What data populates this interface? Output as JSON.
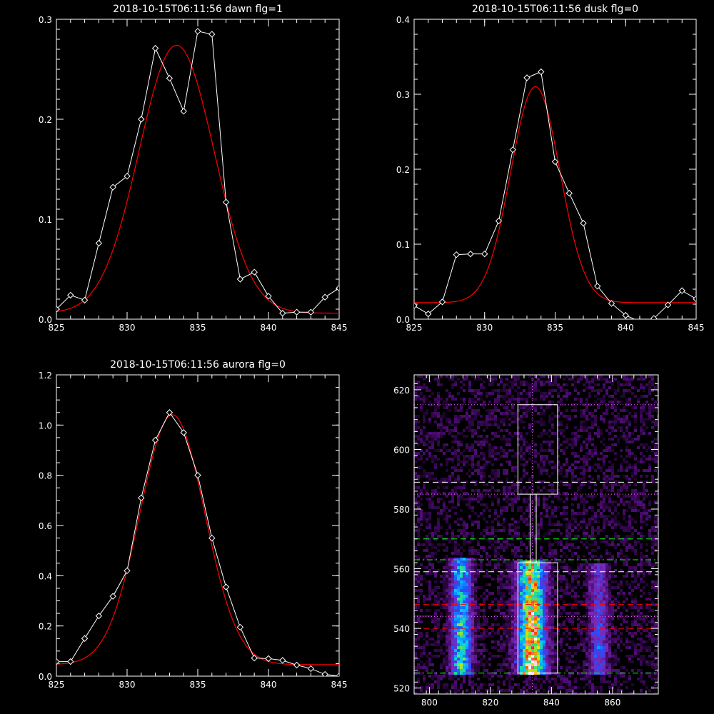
{
  "chart_data": [
    {
      "type": "line",
      "title": "2018-10-15T06:11:56 dawn flg=1",
      "xlim": [
        825,
        845
      ],
      "ylim": [
        0,
        0.3
      ],
      "xticks": [
        825,
        830,
        835,
        840,
        845
      ],
      "yticks": [
        0.0,
        0.1,
        0.2,
        0.3
      ],
      "ytick_labels": [
        "0.0",
        "0.1",
        "0.2",
        "0.3"
      ],
      "series": [
        {
          "x": [
            825,
            826,
            827,
            828,
            829,
            830,
            831,
            832,
            833,
            834,
            835,
            836,
            837,
            838,
            839,
            840,
            841,
            842,
            843,
            844,
            845
          ],
          "y": [
            0.01,
            0.024,
            0.019,
            0.076,
            0.132,
            0.143,
            0.2,
            0.271,
            0.241,
            0.208,
            0.288,
            0.285,
            0.117,
            0.04,
            0.047,
            0.023,
            0.006,
            0.007,
            0.007,
            0.022,
            0.031
          ],
          "color": "#ffffff",
          "marker": "diamond"
        },
        {
          "fit": {
            "amp": 0.268,
            "mu": 833.5,
            "sigma": 2.65,
            "base": 0.006
          },
          "color": "#ff0000"
        }
      ]
    },
    {
      "type": "line",
      "title": "2018-10-15T06:11:56 dusk flg=0",
      "xlim": [
        825,
        845
      ],
      "ylim": [
        0,
        0.4
      ],
      "xticks": [
        825,
        830,
        835,
        840,
        845
      ],
      "yticks": [
        0.0,
        0.1,
        0.2,
        0.3,
        0.4
      ],
      "ytick_labels": [
        "0.0",
        "0.1",
        "0.2",
        "0.3",
        "0.4"
      ],
      "series": [
        {
          "x": [
            825,
            826,
            827,
            828,
            829,
            830,
            831,
            832,
            833,
            834,
            835,
            836,
            837,
            838,
            839,
            840,
            841,
            842,
            843,
            844,
            845
          ],
          "y": [
            0.018,
            0.007,
            0.023,
            0.086,
            0.087,
            0.087,
            0.131,
            0.226,
            0.322,
            0.33,
            0.21,
            0.168,
            0.128,
            0.044,
            0.021,
            0.005,
            -0.003,
            0.001,
            0.019,
            0.038,
            0.027
          ],
          "color": "#ffffff",
          "marker": "diamond"
        },
        {
          "fit": {
            "amp": 0.288,
            "mu": 833.6,
            "sigma": 1.75,
            "base": 0.022
          },
          "color": "#ff0000"
        }
      ]
    },
    {
      "type": "line",
      "title": "2018-10-15T06:11:56 aurora flg=0",
      "xlim": [
        825,
        845
      ],
      "ylim": [
        0,
        1.2
      ],
      "xticks": [
        825,
        830,
        835,
        840,
        845
      ],
      "yticks": [
        0.0,
        0.2,
        0.4,
        0.6,
        0.8,
        1.0,
        1.2
      ],
      "ytick_labels": [
        "0.0",
        "0.2",
        "0.4",
        "0.6",
        "0.8",
        "1.0",
        "1.2"
      ],
      "series": [
        {
          "x": [
            825,
            826,
            827,
            828,
            829,
            830,
            831,
            832,
            833,
            834,
            835,
            836,
            837,
            838,
            839,
            840,
            841,
            842,
            843,
            844,
            845
          ],
          "y": [
            0.058,
            0.058,
            0.15,
            0.24,
            0.318,
            0.42,
            0.71,
            0.94,
            1.05,
            0.97,
            0.8,
            0.55,
            0.355,
            0.195,
            0.072,
            0.07,
            0.063,
            0.044,
            0.03,
            0.007,
            0.0
          ],
          "color": "#ffffff",
          "marker": "diamond"
        },
        {
          "fit": {
            "amp": 0.995,
            "mu": 833.2,
            "sigma": 2.3,
            "base": 0.046
          },
          "color": "#ff0000"
        }
      ]
    },
    {
      "type": "heatmap",
      "title": "",
      "xlim": [
        795,
        875
      ],
      "ylim": [
        518,
        625
      ],
      "xticks": [
        800,
        820,
        840,
        860
      ],
      "yticks": [
        520,
        540,
        560,
        580,
        600,
        620
      ],
      "colormap": [
        "#000000",
        "#4a0a6e",
        "#7a2ab8",
        "#2050ff",
        "#00c8ff",
        "#30e080",
        "#e8e800",
        "#ff2000",
        "#ffffff"
      ],
      "bands": [
        {
          "x_center": 810.5,
          "x_halfwidth": 2.2,
          "y_range": [
            525,
            563
          ],
          "peak": 0.55
        },
        {
          "x_center": 833.5,
          "x_halfwidth": 3.0,
          "y_range": [
            525,
            562
          ],
          "peak": 0.85
        },
        {
          "x_center": 855.5,
          "x_halfwidth": 2.0,
          "y_range": [
            525,
            561
          ],
          "peak": 0.3
        }
      ],
      "boxes": [
        {
          "x": [
            829,
            842
          ],
          "y": [
            585,
            615
          ],
          "color": "#ffffff"
        },
        {
          "x": [
            833,
            835
          ],
          "y": [
            562,
            585
          ],
          "color": "#ffffff"
        },
        {
          "x": [
            829,
            842
          ],
          "y": [
            525,
            562
          ],
          "color": "#ffffff"
        }
      ],
      "hlines": [
        {
          "y": 615,
          "color": "#ff66ff",
          "style": "dotted"
        },
        {
          "y": 589,
          "color": "#ffffff",
          "style": "dashed"
        },
        {
          "y": 585,
          "color": "#ff66ff",
          "style": "dotted"
        },
        {
          "y": 570,
          "color": "#00ff00",
          "style": "dashed"
        },
        {
          "y": 563,
          "color": "#00ff00",
          "style": "dashdot"
        },
        {
          "y": 559,
          "color": "#ffffff",
          "style": "dashed"
        },
        {
          "y": 548,
          "color": "#ff0000",
          "style": "dashed"
        },
        {
          "y": 544,
          "color": "#ff66ff",
          "style": "dotted"
        },
        {
          "y": 540,
          "color": "#ff0000",
          "style": "dashed"
        },
        {
          "y": 525,
          "color": "#00ff00",
          "style": "dashdot"
        }
      ],
      "vlines": [
        {
          "x": 833.7,
          "color": "#ff66ff",
          "style": "dotted"
        }
      ]
    }
  ]
}
